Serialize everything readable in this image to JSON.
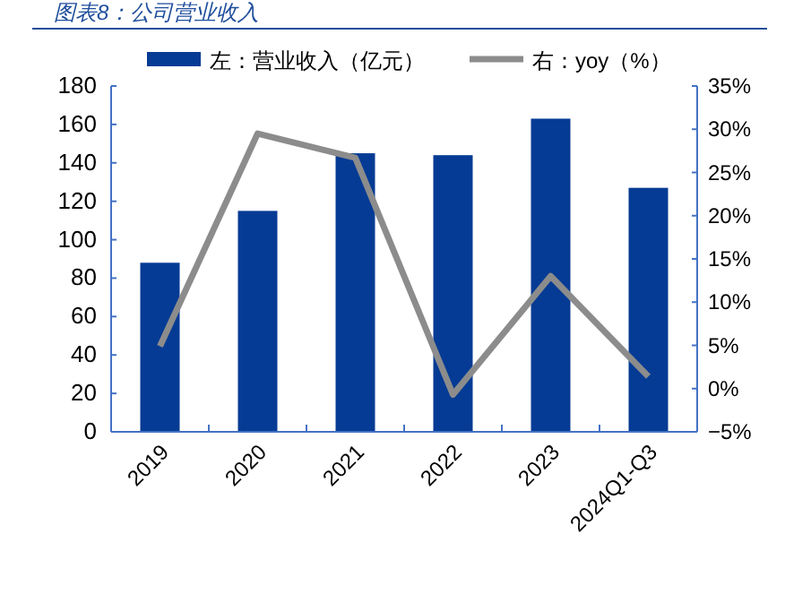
{
  "chart_data": {
    "type": "bar",
    "title": "图表8：公司营业收入",
    "categories": [
      "2019",
      "2020",
      "2021",
      "2022",
      "2023",
      "2024Q1-Q3"
    ],
    "series": [
      {
        "name": "左：营业收入（亿元）",
        "color": "#053b94",
        "values": [
          88,
          115,
          145,
          144,
          163,
          127
        ]
      },
      {
        "name": "右：yoy（%）",
        "type": "line",
        "axis": "y2",
        "color": "#8c8c8c",
        "values": [
          4.9,
          29.5,
          26.7,
          -0.7,
          13.0,
          1.4
        ]
      }
    ],
    "ylim": [
      0,
      180
    ],
    "yticks": [
      0,
      20,
      40,
      60,
      80,
      100,
      120,
      140,
      160,
      180
    ],
    "y2lim": [
      -5,
      35
    ],
    "y2ticks": [
      {
        "value": -5,
        "label": "−5%"
      },
      {
        "value": 0,
        "label": "0%"
      },
      {
        "value": 5,
        "label": "5%"
      },
      {
        "value": 10,
        "label": "10%"
      },
      {
        "value": 15,
        "label": "15%"
      },
      {
        "value": 20,
        "label": "20%"
      },
      {
        "value": 25,
        "label": "25%"
      },
      {
        "value": 30,
        "label": "30%"
      },
      {
        "value": 35,
        "label": "35%"
      }
    ],
    "legend": "top",
    "grid": false,
    "marker": "none"
  }
}
